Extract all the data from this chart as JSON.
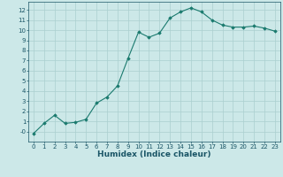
{
  "x": [
    0,
    1,
    2,
    3,
    4,
    5,
    6,
    7,
    8,
    9,
    10,
    11,
    12,
    13,
    14,
    15,
    16,
    17,
    18,
    19,
    20,
    21,
    22,
    23
  ],
  "y": [
    -0.2,
    0.8,
    1.6,
    0.8,
    0.9,
    1.2,
    2.8,
    3.4,
    4.5,
    7.2,
    9.8,
    9.3,
    9.7,
    11.2,
    11.8,
    12.2,
    11.8,
    11.0,
    10.5,
    10.3,
    10.3,
    10.4,
    10.2,
    9.9
  ],
  "line_color": "#1a7a6e",
  "bg_color": "#cce8e8",
  "grid_color": "#aacfcf",
  "xlabel": "Humidex (Indice chaleur)",
  "xlabel_color": "#1a5566",
  "tick_color": "#1a5566",
  "ylim": [
    -1,
    12.8
  ],
  "xlim": [
    -0.5,
    23.5
  ],
  "yticks": [
    0,
    1,
    2,
    3,
    4,
    5,
    6,
    7,
    8,
    9,
    10,
    11,
    12
  ],
  "xticks": [
    0,
    1,
    2,
    3,
    4,
    5,
    6,
    7,
    8,
    9,
    10,
    11,
    12,
    13,
    14,
    15,
    16,
    17,
    18,
    19,
    20,
    21,
    22,
    23
  ],
  "marker": "D",
  "marker_size": 1.8,
  "line_width": 0.8,
  "tick_fontsize": 5.0,
  "xlabel_fontsize": 6.5
}
